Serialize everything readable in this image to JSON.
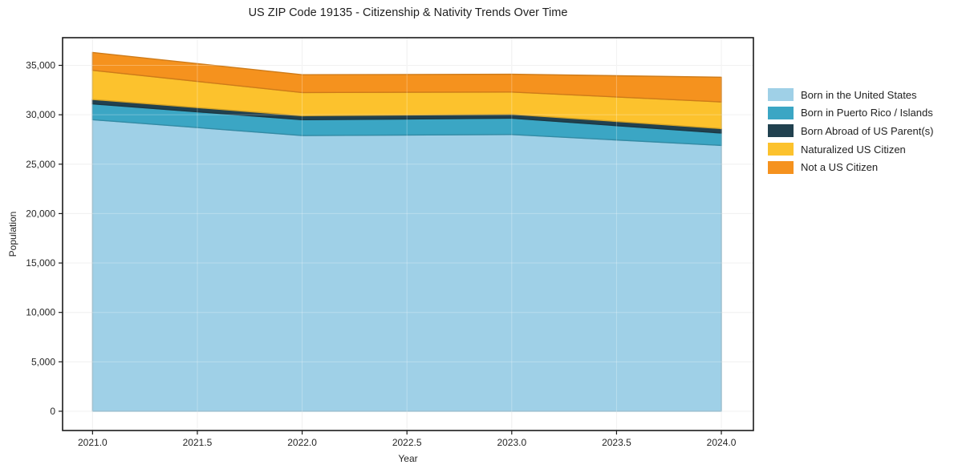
{
  "title": "US ZIP Code 19135 - Citizenship & Nativity Trends Over Time",
  "chart_data": {
    "type": "area",
    "stacked": true,
    "title": "US ZIP Code 19135 - Citizenship & Nativity Trends Over Time",
    "xlabel": "Year",
    "ylabel": "Population",
    "x": [
      2021,
      2022,
      2023,
      2024
    ],
    "series": [
      {
        "name": "Born in the United States",
        "color": "#9FD0E7",
        "values": [
          29500,
          27900,
          28000,
          26900
        ]
      },
      {
        "name": "Born in Puerto Rico / Islands",
        "color": "#3BA6C4",
        "values": [
          1600,
          1600,
          1650,
          1250
        ]
      },
      {
        "name": "Born Abroad of US Parent(s)",
        "color": "#21414F",
        "values": [
          450,
          400,
          400,
          450
        ]
      },
      {
        "name": "Naturalized US Citizen",
        "color": "#FCC22D",
        "values": [
          2950,
          2350,
          2250,
          2700
        ]
      },
      {
        "name": "Not a US Citizen",
        "color": "#F5921E",
        "values": [
          1800,
          1800,
          1800,
          2500
        ]
      }
    ],
    "x_ticks": [
      2021.0,
      2021.5,
      2022.0,
      2022.5,
      2023.0,
      2023.5,
      2024.0
    ],
    "x_tick_labels": [
      "2021.0",
      "2021.5",
      "2022.0",
      "2022.5",
      "2023.0",
      "2023.5",
      "2024.0"
    ],
    "y_ticks": [
      0,
      5000,
      10000,
      15000,
      20000,
      25000,
      30000,
      35000
    ],
    "y_tick_labels": [
      "0",
      "5,000",
      "10,000",
      "15,000",
      "20,000",
      "25,000",
      "30,000",
      "35,000"
    ],
    "xlim": [
      2020.857,
      2024.153
    ],
    "ylim": [
      -1950,
      37800
    ],
    "grid": true,
    "legend_position": "center-right-outside"
  },
  "style_colors": {
    "grid": "#ececec",
    "grid_over_area": "rgba(255,255,255,0.28)",
    "spine": "#1a1a1a",
    "text": "#262626",
    "background": "#ffffff"
  }
}
